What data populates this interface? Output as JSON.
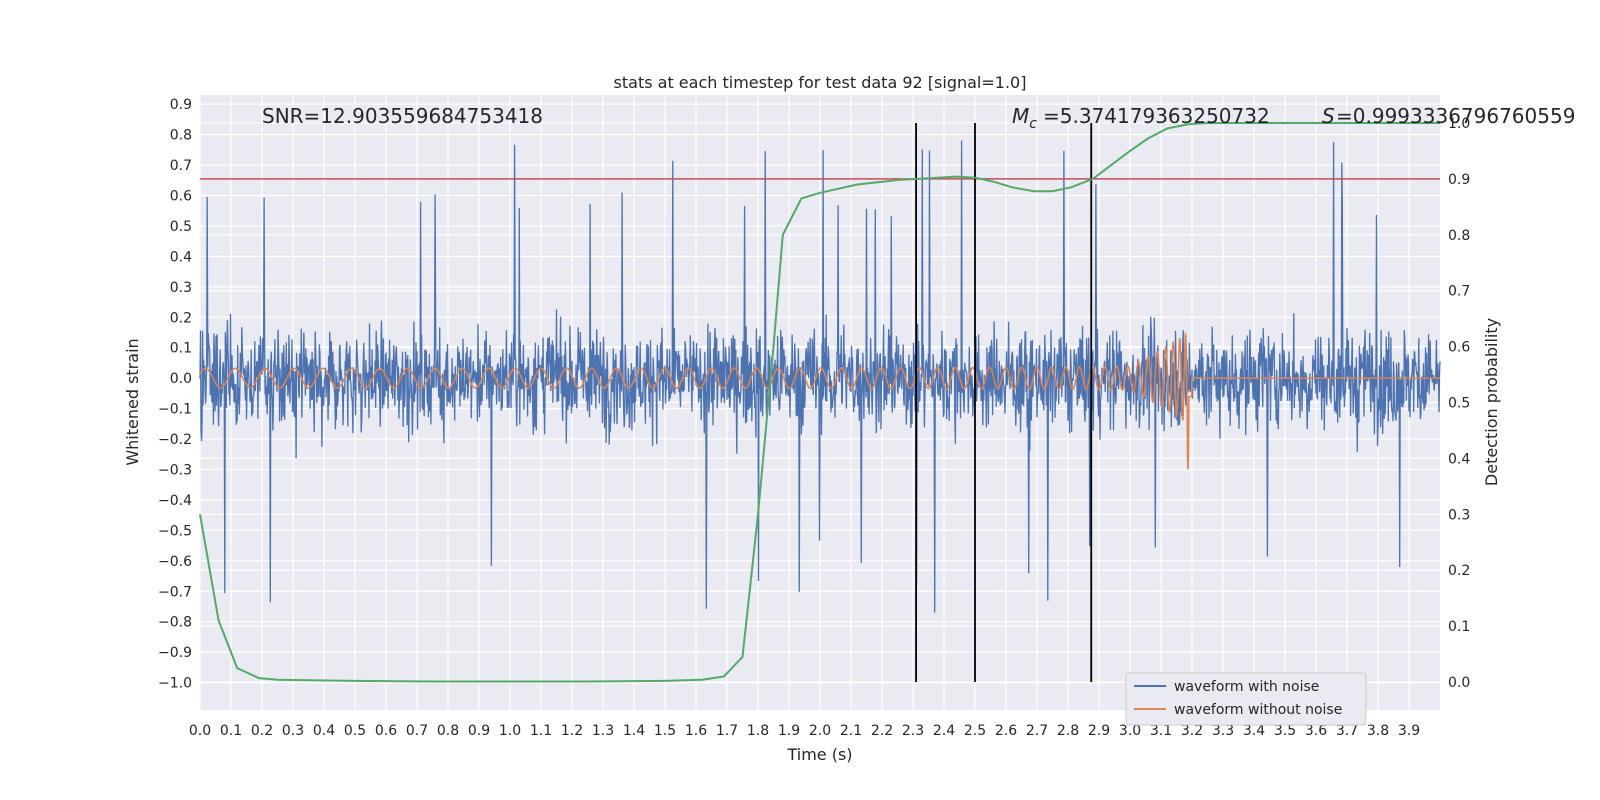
{
  "chart_data": {
    "type": "line",
    "title": "stats at each timestep for test data 92 [signal=1.0]",
    "xlabel": "Time (s)",
    "ylabel": "Whitened strain",
    "y2label": "Detection probability",
    "xlim": [
      0.0,
      4.0
    ],
    "ylim": [
      -1.09,
      0.93
    ],
    "y2lim": [
      -0.05,
      1.05
    ],
    "x_ticks": [
      "0.0",
      "0.1",
      "0.2",
      "0.3",
      "0.4",
      "0.5",
      "0.6",
      "0.7",
      "0.8",
      "0.9",
      "1.0",
      "1.1",
      "1.2",
      "1.3",
      "1.4",
      "1.5",
      "1.6",
      "1.7",
      "1.8",
      "1.9",
      "2.0",
      "2.1",
      "2.2",
      "2.3",
      "2.4",
      "2.5",
      "2.6",
      "2.7",
      "2.8",
      "2.9",
      "3.0",
      "3.1",
      "3.2",
      "3.3",
      "3.4",
      "3.5",
      "3.6",
      "3.7",
      "3.8",
      "3.9"
    ],
    "y_ticks": [
      "0.9",
      "0.8",
      "0.7",
      "0.6",
      "0.5",
      "0.4",
      "0.3",
      "0.2",
      "0.1",
      "0.0",
      "−0.1",
      "−0.2",
      "−0.3",
      "−0.4",
      "−0.5",
      "−0.6",
      "−0.7",
      "−0.8",
      "−0.9",
      "−1.0"
    ],
    "y2_ticks": [
      "1.0",
      "0.9",
      "0.8",
      "0.7",
      "0.6",
      "0.5",
      "0.4",
      "0.3",
      "0.2",
      "0.1",
      "0.0"
    ],
    "grid": true,
    "legend_position": "lower-right",
    "series": [
      {
        "name": "waveform with noise",
        "color": "#4c72b0",
        "axis": "left",
        "description_range": [
          -0.8,
          0.83
        ]
      },
      {
        "name": "waveform without noise",
        "color": "#dd8452",
        "axis": "left",
        "merger_time": 3.19,
        "peak_amplitude": 0.3
      },
      {
        "color": "#55a868",
        "axis": "right",
        "x": [
          0.0,
          0.06,
          0.12,
          0.19,
          0.25,
          0.38,
          0.5,
          0.75,
          1.0,
          1.25,
          1.5,
          1.62,
          1.69,
          1.75,
          1.8,
          1.85,
          1.88,
          1.94,
          2.0,
          2.12,
          2.25,
          2.38,
          2.44,
          2.5,
          2.56,
          2.62,
          2.69,
          2.75,
          2.81,
          2.88,
          2.94,
          3.0,
          3.06,
          3.12,
          3.19,
          3.25,
          3.31,
          3.5,
          3.75,
          4.0
        ],
        "y": [
          0.3,
          0.11,
          0.025,
          0.007,
          0.004,
          0.003,
          0.002,
          0.001,
          0.001,
          0.001,
          0.002,
          0.004,
          0.01,
          0.045,
          0.3,
          0.6,
          0.8,
          0.865,
          0.875,
          0.89,
          0.898,
          0.902,
          0.904,
          0.902,
          0.895,
          0.885,
          0.878,
          0.878,
          0.885,
          0.9,
          0.925,
          0.95,
          0.973,
          0.99,
          0.998,
          1.0,
          1.0,
          1.0,
          1.0,
          1.0
        ]
      }
    ],
    "threshold": {
      "value": 0.9,
      "axis": "right",
      "color": "#c44e52"
    },
    "vlines": [
      2.31,
      2.5,
      2.875
    ],
    "annotations": {
      "snr": "SNR=12.903559684753418",
      "mc": "=5.374179363250732",
      "s": "=0.9993336796760559"
    },
    "legend": [
      "waveform with noise",
      "waveform without noise"
    ]
  }
}
